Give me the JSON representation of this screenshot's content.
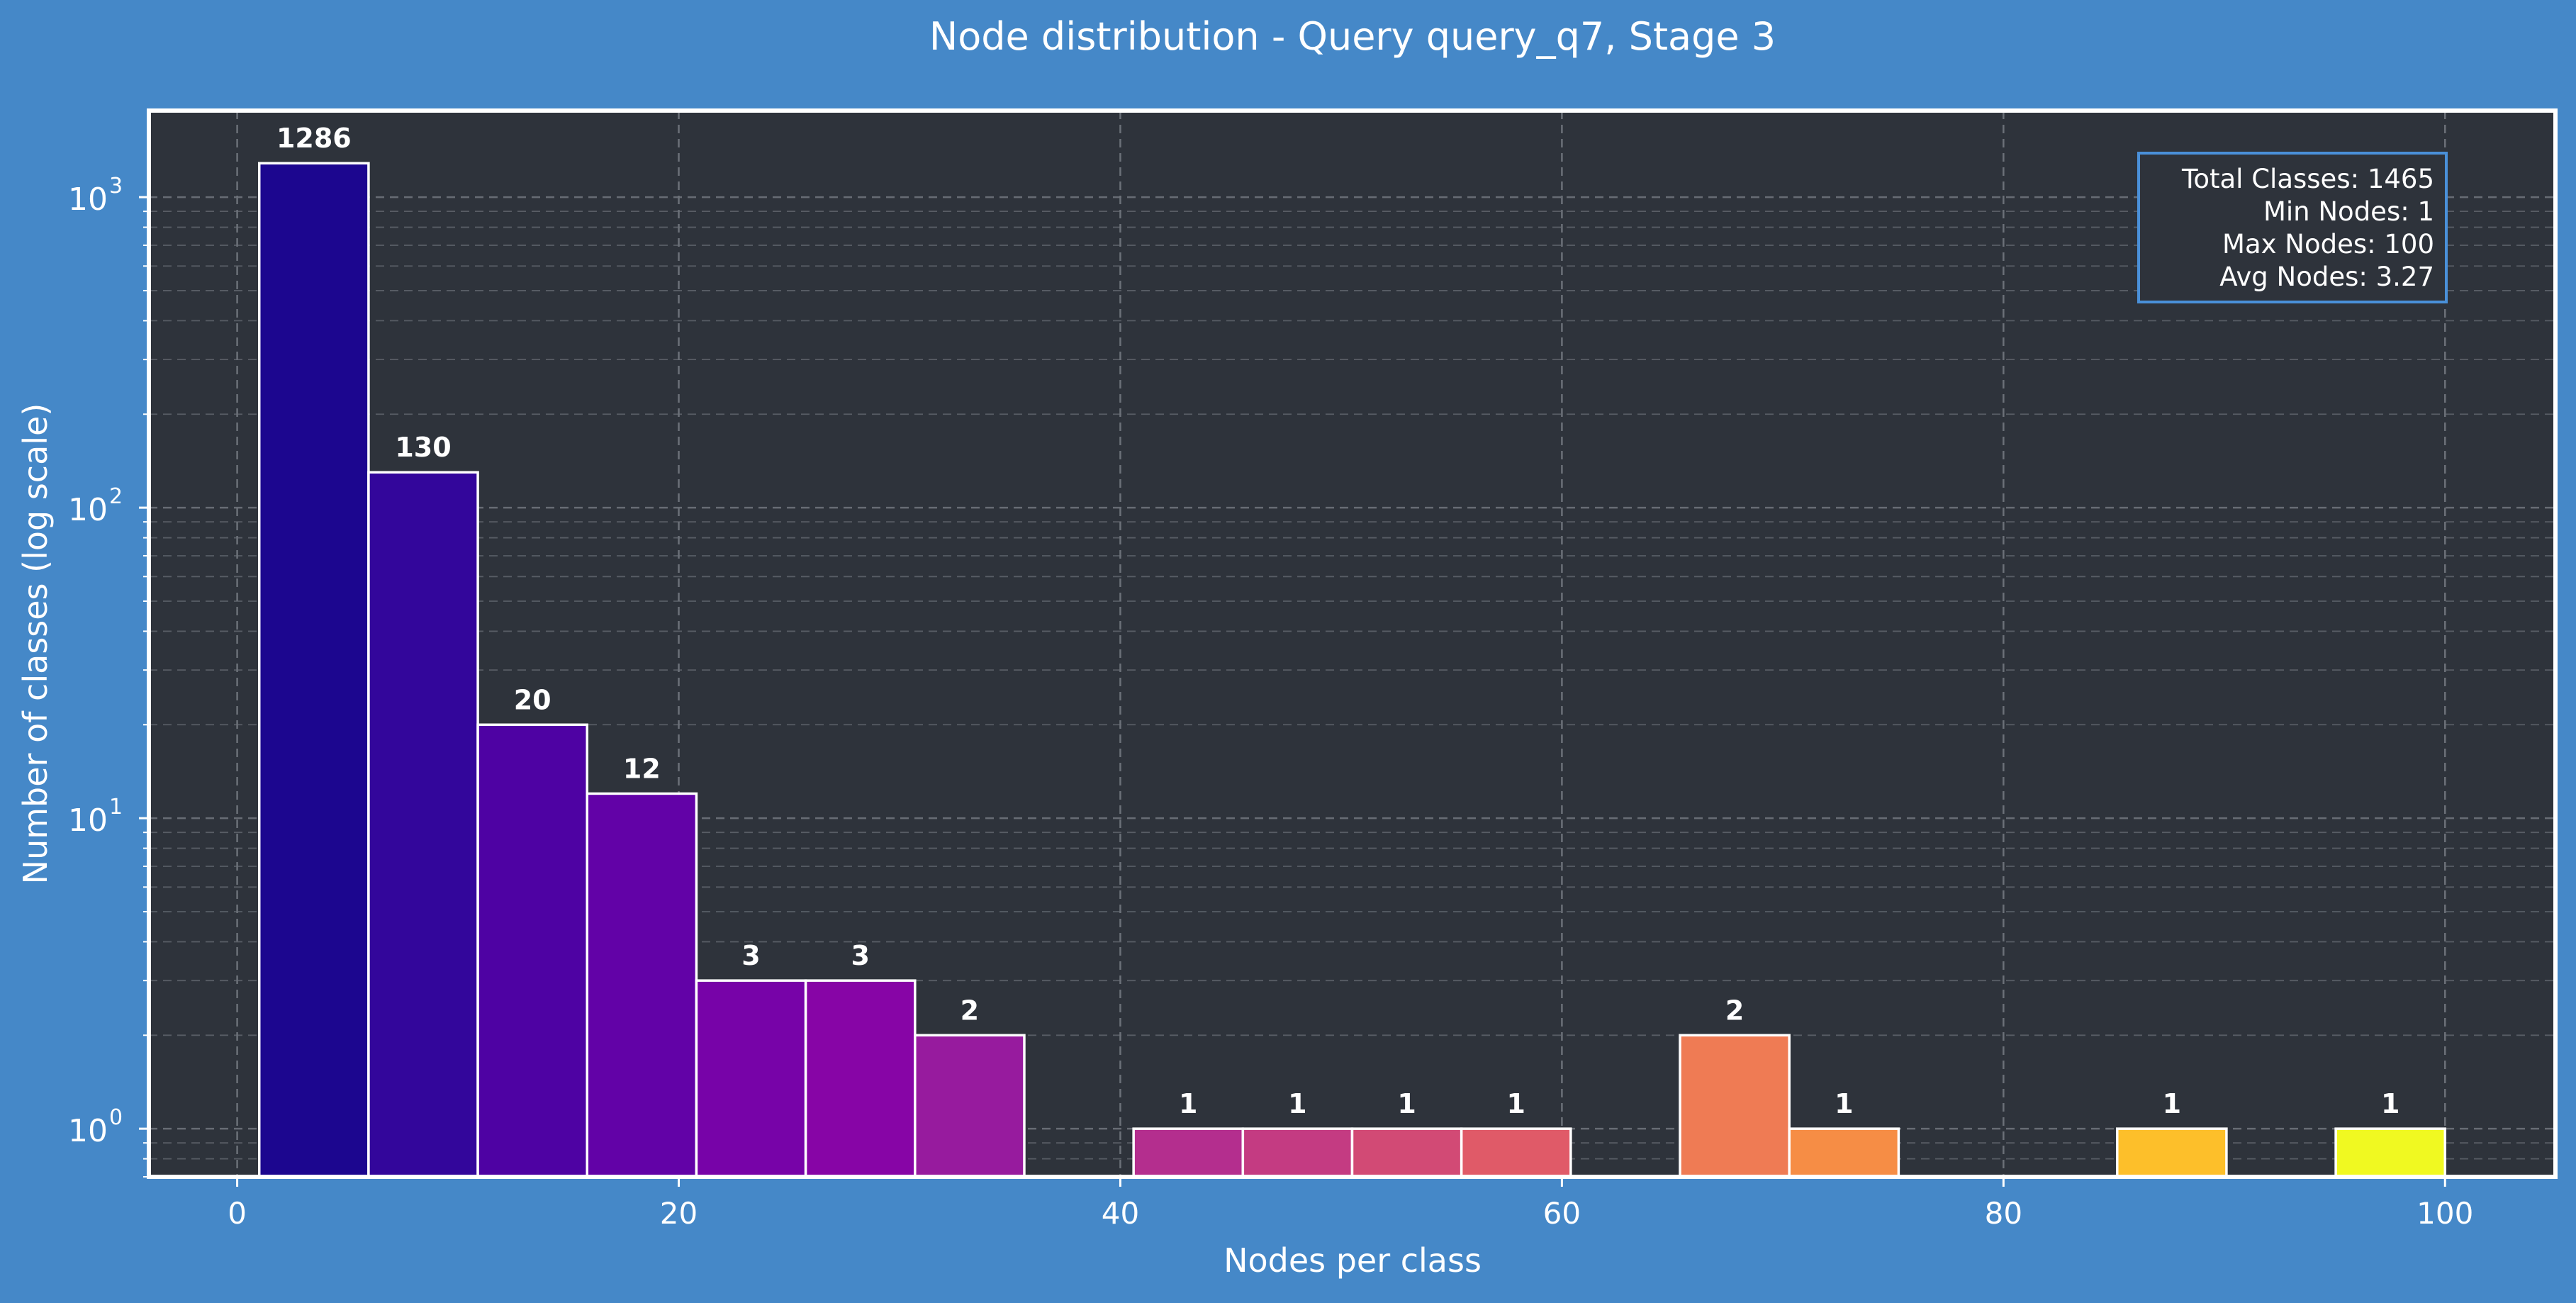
{
  "colors": {
    "page_background": "#4588c8",
    "plot_background": "#2e333b",
    "frame": "#ffffff",
    "grid": "#6b7078",
    "text": "#ffffff",
    "stats_box_border": "#4a90d9"
  },
  "chart_data": {
    "type": "bar",
    "title": "Node distribution - Query query_q7, Stage 3",
    "xlabel": "Nodes per class",
    "ylabel": "Number of classes (log scale)",
    "x_scale": "linear",
    "y_scale": "log",
    "xlim": [
      -4,
      105
    ],
    "ylim": [
      0.7,
      1900
    ],
    "xticks": [
      0,
      20,
      40,
      60,
      80,
      100
    ],
    "yticks": [
      {
        "value": 1,
        "base": "10",
        "exp": "0"
      },
      {
        "value": 10,
        "base": "10",
        "exp": "1"
      },
      {
        "value": 100,
        "base": "10",
        "exp": "2"
      },
      {
        "value": 1000,
        "base": "10",
        "exp": "3"
      }
    ],
    "grid": true,
    "bar_edge_color": "#ffffff",
    "bins": [
      {
        "start": 1.0,
        "end": 5.95,
        "count": 1286,
        "label": "1286",
        "color": "#1c068f"
      },
      {
        "start": 5.95,
        "end": 10.9,
        "count": 130,
        "label": "130",
        "color": "#33069b"
      },
      {
        "start": 10.9,
        "end": 15.85,
        "count": 20,
        "label": "20",
        "color": "#4e02a3"
      },
      {
        "start": 15.85,
        "end": 20.8,
        "count": 12,
        "label": "12",
        "color": "#6202a7"
      },
      {
        "start": 20.8,
        "end": 25.75,
        "count": 3,
        "label": "3",
        "color": "#7703a8"
      },
      {
        "start": 25.75,
        "end": 30.7,
        "count": 3,
        "label": "3",
        "color": "#8705a6"
      },
      {
        "start": 30.7,
        "end": 35.65,
        "count": 2,
        "label": "2",
        "color": "#971b9e"
      },
      {
        "start": 40.6,
        "end": 45.55,
        "count": 1,
        "label": "1",
        "color": "#b42e8e"
      },
      {
        "start": 45.55,
        "end": 50.5,
        "count": 1,
        "label": "1",
        "color": "#c43b82"
      },
      {
        "start": 50.5,
        "end": 55.45,
        "count": 1,
        "label": "1",
        "color": "#d24a75"
      },
      {
        "start": 55.45,
        "end": 60.4,
        "count": 1,
        "label": "1",
        "color": "#e05a68"
      },
      {
        "start": 65.35,
        "end": 70.3,
        "count": 2,
        "label": "2",
        "color": "#ef7b54"
      },
      {
        "start": 70.3,
        "end": 75.25,
        "count": 1,
        "label": "1",
        "color": "#f68d45"
      },
      {
        "start": 85.15,
        "end": 90.1,
        "count": 1,
        "label": "1",
        "color": "#fdbf2a"
      },
      {
        "start": 95.05,
        "end": 100.0,
        "count": 1,
        "label": "1",
        "color": "#f0f921"
      }
    ],
    "stats": [
      "Total Classes: 1465",
      "Min Nodes: 1",
      "Max Nodes: 100",
      "Avg Nodes: 3.27"
    ],
    "stats_position": "top-right"
  }
}
